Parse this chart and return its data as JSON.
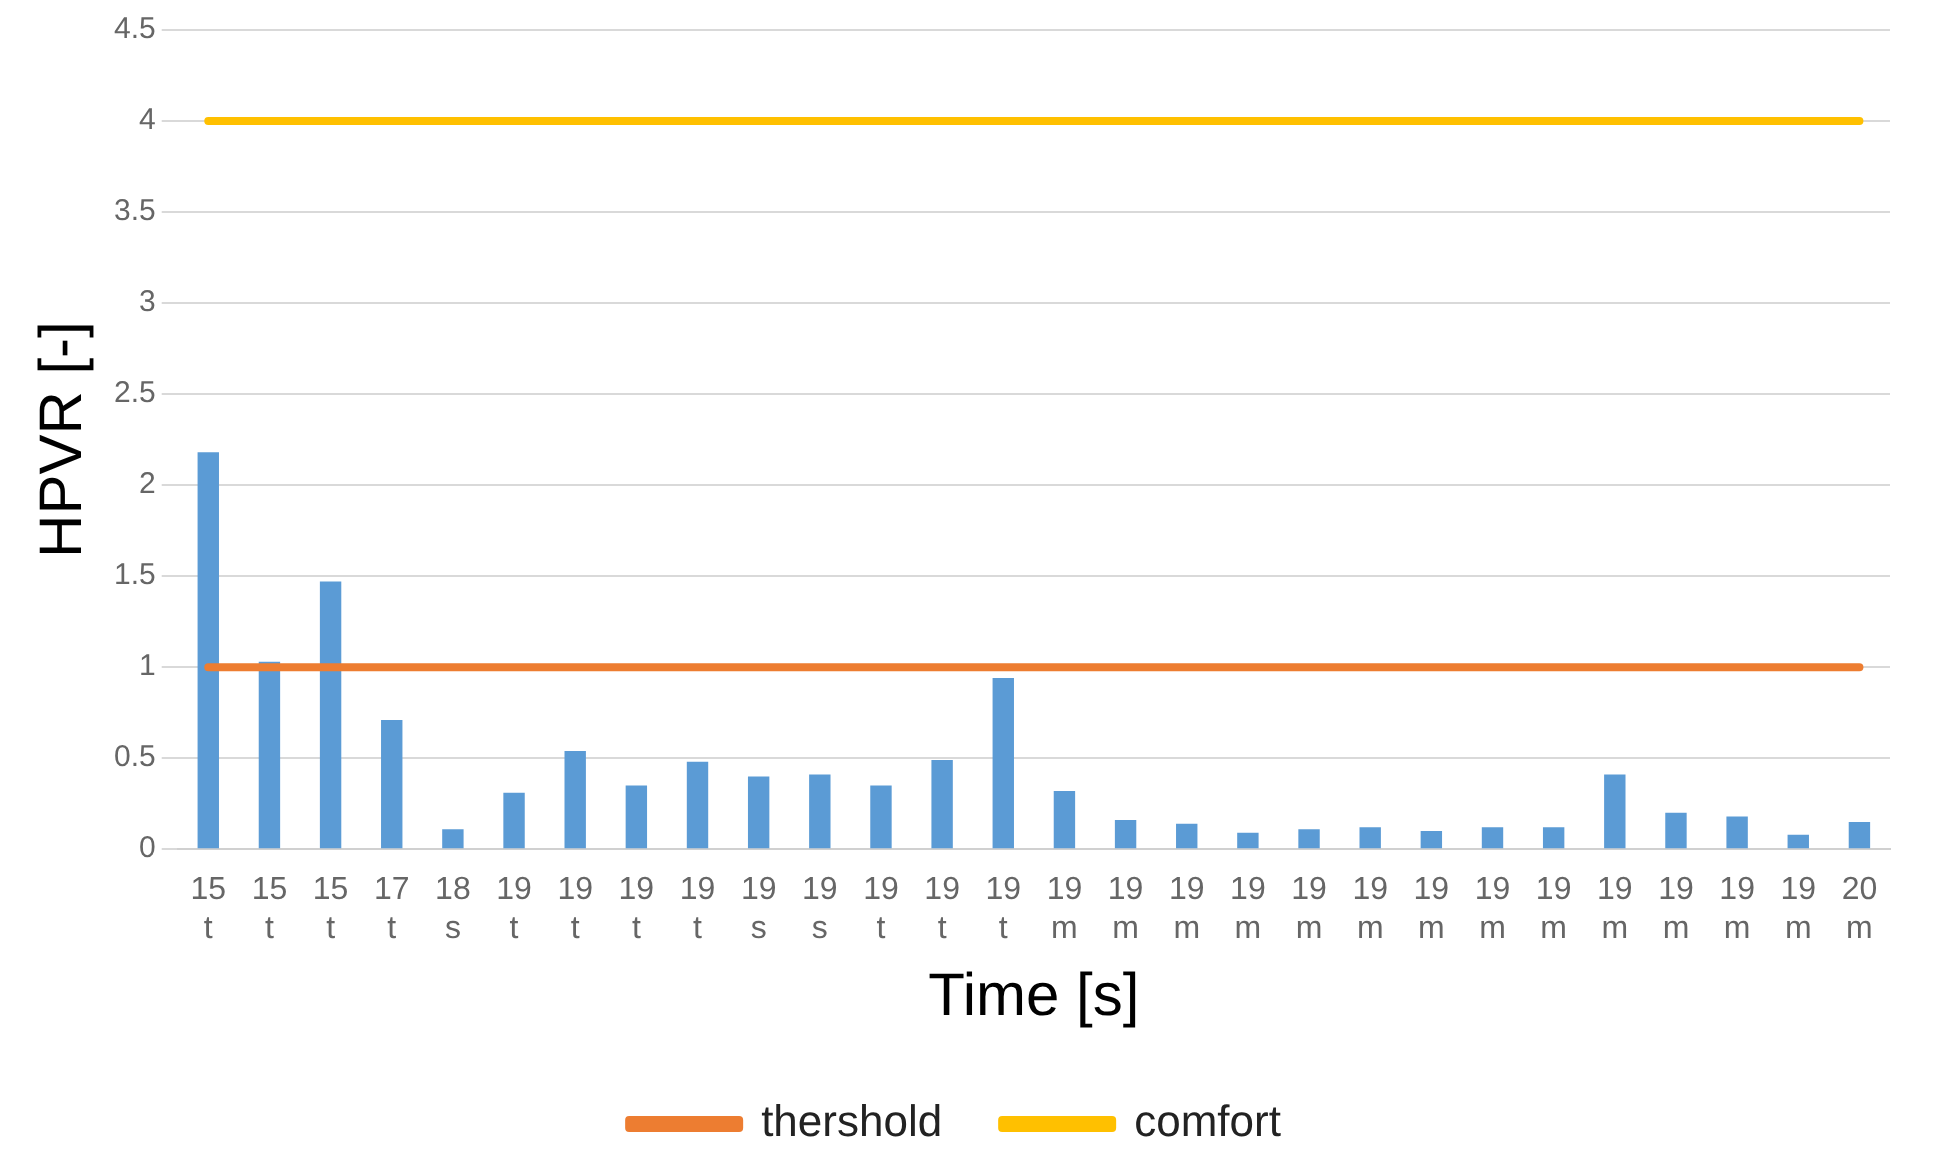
{
  "chart_data": {
    "type": "bar",
    "xlabel": "Time [s]",
    "ylabel": "HPVR [-]",
    "categories": [
      "15 t",
      "15 t",
      "15 t",
      "17 t",
      "18 s",
      "19 t",
      "19 t",
      "19 t",
      "19 t",
      "19 s",
      "19 s",
      "19 t",
      "19 t",
      "19 t",
      "19 m",
      "19 m",
      "19 m",
      "19 m",
      "19 m",
      "19 m",
      "19 m",
      "19 m",
      "19 m",
      "19 m",
      "19 m",
      "19 m",
      "19 m",
      "20 m"
    ],
    "series": [
      {
        "color": "#5b9bd5",
        "values": [
          2.18,
          1.03,
          1.47,
          0.71,
          0.11,
          0.31,
          0.54,
          0.35,
          0.48,
          0.4,
          0.41,
          0.35,
          0.49,
          0.94,
          0.32,
          0.16,
          0.14,
          0.09,
          0.11,
          0.12,
          0.1,
          0.12,
          0.12,
          0.41,
          0.2,
          0.18,
          0.08,
          0.15
        ]
      },
      {
        "type": "line",
        "name": "thershold",
        "color": "#ed7d31",
        "values": [
          1,
          1,
          1,
          1,
          1,
          1,
          1,
          1,
          1,
          1,
          1,
          1,
          1,
          1,
          1,
          1,
          1,
          1,
          1,
          1,
          1,
          1,
          1,
          1,
          1,
          1,
          1,
          1
        ]
      },
      {
        "type": "line",
        "name": "comfort",
        "color": "#ffc000",
        "values": [
          4,
          4,
          4,
          4,
          4,
          4,
          4,
          4,
          4,
          4,
          4,
          4,
          4,
          4,
          4,
          4,
          4,
          4,
          4,
          4,
          4,
          4,
          4,
          4,
          4,
          4,
          4,
          4
        ]
      }
    ],
    "ylim": [
      0,
      4.5
    ],
    "yticks": [
      0,
      0.5,
      1,
      1.5,
      2,
      2.5,
      3,
      3.5,
      4,
      4.5
    ],
    "grid": "y",
    "legend": "bottom",
    "marker": "none"
  }
}
